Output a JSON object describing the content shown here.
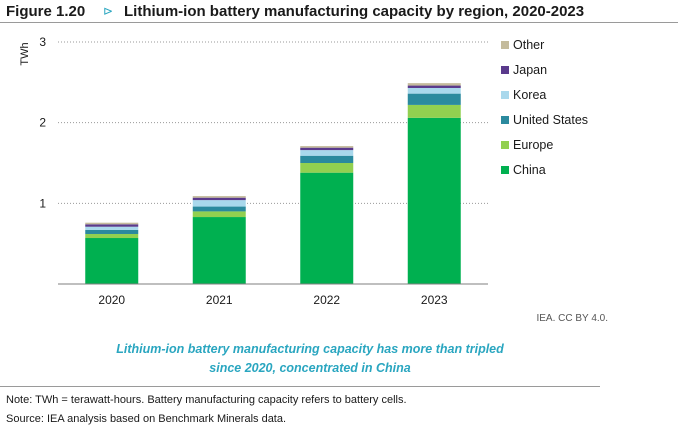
{
  "figure": {
    "number": "Figure 1.20",
    "arrow": "⊳",
    "title": "Lithium-ion battery manufacturing capacity by region, 2020-2023"
  },
  "credit": "IEA. CC BY 4.0.",
  "caption": {
    "line1": "Lithium-ion battery manufacturing capacity has more than tripled",
    "line2": "since 2020, concentrated in China"
  },
  "note": "Note: TWh = terawatt-hours. Battery manufacturing capacity refers to battery cells.",
  "source": "Source: IEA analysis based on Benchmark Minerals data.",
  "chart_data": {
    "type": "bar",
    "stacked": true,
    "title": "Lithium-ion battery manufacturing capacity by region, 2020-2023",
    "ylabel": "TWh",
    "xlabel": "",
    "categories": [
      "2020",
      "2021",
      "2022",
      "2023"
    ],
    "ylim": [
      0,
      3
    ],
    "yticks": [
      1,
      2,
      3
    ],
    "grid": "dotted horizontal",
    "legend_position": "right",
    "series": [
      {
        "name": "China",
        "color": "#00b050",
        "values": [
          0.57,
          0.83,
          1.38,
          2.06
        ]
      },
      {
        "name": "Europe",
        "color": "#92d050",
        "values": [
          0.05,
          0.07,
          0.12,
          0.16
        ]
      },
      {
        "name": "United States",
        "color": "#2b8a9e",
        "values": [
          0.05,
          0.06,
          0.09,
          0.14
        ]
      },
      {
        "name": "Korea",
        "color": "#a9d8ec",
        "values": [
          0.04,
          0.08,
          0.07,
          0.07
        ]
      },
      {
        "name": "Japan",
        "color": "#5a3a8c",
        "values": [
          0.03,
          0.03,
          0.03,
          0.03
        ]
      },
      {
        "name": "Other",
        "color": "#c4bb9c",
        "values": [
          0.02,
          0.02,
          0.02,
          0.03
        ]
      }
    ]
  }
}
